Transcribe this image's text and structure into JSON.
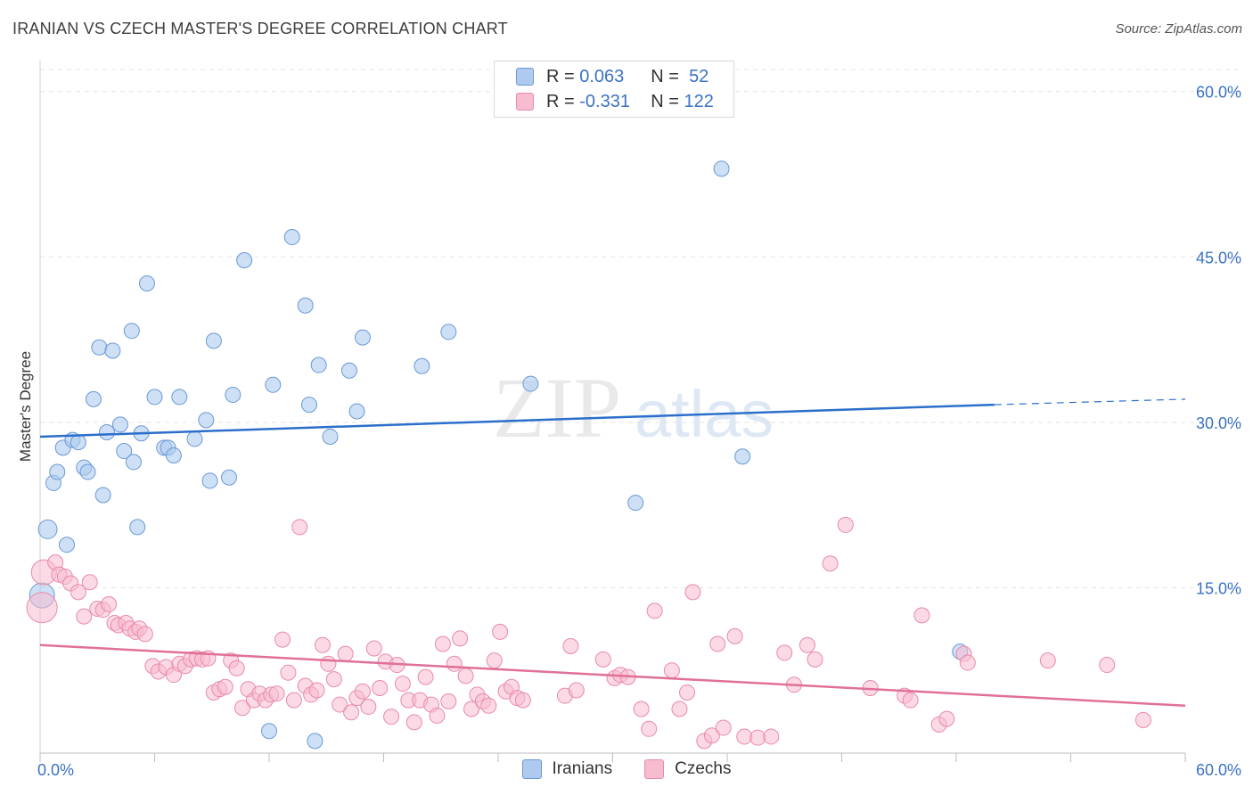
{
  "header": {
    "title": "IRANIAN VS CZECH MASTER'S DEGREE CORRELATION CHART",
    "source": "Source: ZipAtlas.com"
  },
  "watermark": {
    "zip": "ZIP",
    "atlas": "atlas"
  },
  "legend": {
    "iranians": {
      "r_label": "R =",
      "r_value": "0.063",
      "n_label": "N =",
      "n_value": "52"
    },
    "czechs": {
      "r_label": "R =",
      "r_value": "-0.331",
      "n_label": "N =",
      "n_value": "122"
    }
  },
  "colors": {
    "iranians_fill": "#aecbef",
    "iranians_stroke": "#6b98d6",
    "iranians_line": "#2b6fcb",
    "czechs_fill": "#f7bccf",
    "czechs_stroke": "#e98aa8",
    "czechs_line": "#e0709a",
    "grid": "#e4e4e4",
    "axis_label": "#3a72c4"
  },
  "chart_data": {
    "type": "scatter",
    "title": "IRANIAN VS CZECH MASTER'S DEGREE CORRELATION CHART",
    "xlabel": "",
    "ylabel": "Master's Degree",
    "xlim": [
      0,
      60
    ],
    "ylim": [
      0,
      62
    ],
    "x_tick_labels": [
      "0.0%",
      "60.0%"
    ],
    "y_ticks": [
      15,
      30,
      45,
      60
    ],
    "y_tick_labels": [
      "15.0%",
      "30.0%",
      "45.0%",
      "60.0%"
    ],
    "grid": true,
    "legend_position": "top-center",
    "series": [
      {
        "name": "Iranians",
        "r": 0.063,
        "n": 52,
        "trend": {
          "x": [
            0,
            50
          ],
          "y": [
            28.7,
            31.6
          ],
          "dashed_to": [
            60,
            32.1
          ]
        },
        "points": [
          [
            0.1,
            14.3
          ],
          [
            0.4,
            20.3
          ],
          [
            0.7,
            24.5
          ],
          [
            0.9,
            25.5
          ],
          [
            1.2,
            27.7
          ],
          [
            1.4,
            18.9
          ],
          [
            1.7,
            28.4
          ],
          [
            2.0,
            28.2
          ],
          [
            2.3,
            25.9
          ],
          [
            2.5,
            25.5
          ],
          [
            2.8,
            32.1
          ],
          [
            3.1,
            36.8
          ],
          [
            3.3,
            23.4
          ],
          [
            3.5,
            29.1
          ],
          [
            3.8,
            36.5
          ],
          [
            4.2,
            29.8
          ],
          [
            4.4,
            27.4
          ],
          [
            4.8,
            38.3
          ],
          [
            4.9,
            26.4
          ],
          [
            5.1,
            20.5
          ],
          [
            5.3,
            29.0
          ],
          [
            5.6,
            42.6
          ],
          [
            6.0,
            32.3
          ],
          [
            6.5,
            27.7
          ],
          [
            6.7,
            27.7
          ],
          [
            7.0,
            27.0
          ],
          [
            7.3,
            32.3
          ],
          [
            8.1,
            28.5
          ],
          [
            8.7,
            30.2
          ],
          [
            8.9,
            24.7
          ],
          [
            9.1,
            37.4
          ],
          [
            9.9,
            25.0
          ],
          [
            10.1,
            32.5
          ],
          [
            12.0,
            2.0
          ],
          [
            10.7,
            44.7
          ],
          [
            12.2,
            33.4
          ],
          [
            13.2,
            46.8
          ],
          [
            13.9,
            40.6
          ],
          [
            14.1,
            31.6
          ],
          [
            14.4,
            1.1
          ],
          [
            14.6,
            35.2
          ],
          [
            15.2,
            28.7
          ],
          [
            16.2,
            34.7
          ],
          [
            16.6,
            31.0
          ],
          [
            16.9,
            37.7
          ],
          [
            20.0,
            35.1
          ],
          [
            21.4,
            38.2
          ],
          [
            25.7,
            33.5
          ],
          [
            31.2,
            22.7
          ],
          [
            35.7,
            53.0
          ],
          [
            36.8,
            26.9
          ],
          [
            48.2,
            9.2
          ]
        ]
      },
      {
        "name": "Czechs",
        "r": -0.331,
        "n": 122,
        "trend": {
          "x": [
            0,
            60
          ],
          "y": [
            9.8,
            4.3
          ]
        },
        "points": [
          [
            0.1,
            13.2
          ],
          [
            0.2,
            16.4
          ],
          [
            0.8,
            17.3
          ],
          [
            1.0,
            16.2
          ],
          [
            1.3,
            16.0
          ],
          [
            1.6,
            15.4
          ],
          [
            2.0,
            14.6
          ],
          [
            2.3,
            12.4
          ],
          [
            2.6,
            15.5
          ],
          [
            3.0,
            13.1
          ],
          [
            3.3,
            13.0
          ],
          [
            3.6,
            13.5
          ],
          [
            3.9,
            11.8
          ],
          [
            4.1,
            11.6
          ],
          [
            4.5,
            11.8
          ],
          [
            4.7,
            11.3
          ],
          [
            5.0,
            11.0
          ],
          [
            5.2,
            11.3
          ],
          [
            5.5,
            10.8
          ],
          [
            5.9,
            7.9
          ],
          [
            6.2,
            7.4
          ],
          [
            6.6,
            7.8
          ],
          [
            7.0,
            7.1
          ],
          [
            7.3,
            8.1
          ],
          [
            7.6,
            7.9
          ],
          [
            7.9,
            8.5
          ],
          [
            8.2,
            8.6
          ],
          [
            8.5,
            8.5
          ],
          [
            8.8,
            8.6
          ],
          [
            9.1,
            5.5
          ],
          [
            9.4,
            5.8
          ],
          [
            9.7,
            6.0
          ],
          [
            10.0,
            8.4
          ],
          [
            10.3,
            7.7
          ],
          [
            10.6,
            4.1
          ],
          [
            10.9,
            5.8
          ],
          [
            11.2,
            4.8
          ],
          [
            11.5,
            5.4
          ],
          [
            11.8,
            4.8
          ],
          [
            12.1,
            5.3
          ],
          [
            12.4,
            5.4
          ],
          [
            12.7,
            10.3
          ],
          [
            13.0,
            7.3
          ],
          [
            13.3,
            4.8
          ],
          [
            13.6,
            20.5
          ],
          [
            13.9,
            6.1
          ],
          [
            14.2,
            5.3
          ],
          [
            14.5,
            5.7
          ],
          [
            14.8,
            9.8
          ],
          [
            15.1,
            8.1
          ],
          [
            15.4,
            6.7
          ],
          [
            15.7,
            4.4
          ],
          [
            16.0,
            9.0
          ],
          [
            16.3,
            3.7
          ],
          [
            16.6,
            5.0
          ],
          [
            16.9,
            5.6
          ],
          [
            17.2,
            4.2
          ],
          [
            17.5,
            9.5
          ],
          [
            17.8,
            5.9
          ],
          [
            18.1,
            8.3
          ],
          [
            18.4,
            3.3
          ],
          [
            18.7,
            8.0
          ],
          [
            19.0,
            6.3
          ],
          [
            19.3,
            4.8
          ],
          [
            19.6,
            2.8
          ],
          [
            19.9,
            4.8
          ],
          [
            20.2,
            6.9
          ],
          [
            20.5,
            4.4
          ],
          [
            20.8,
            3.4
          ],
          [
            21.1,
            9.9
          ],
          [
            21.4,
            4.7
          ],
          [
            21.7,
            8.1
          ],
          [
            22.0,
            10.4
          ],
          [
            22.3,
            7.0
          ],
          [
            22.6,
            4.0
          ],
          [
            22.9,
            5.3
          ],
          [
            23.2,
            4.7
          ],
          [
            23.5,
            4.3
          ],
          [
            23.8,
            8.4
          ],
          [
            24.1,
            11.0
          ],
          [
            24.4,
            5.6
          ],
          [
            24.7,
            6.0
          ],
          [
            25.0,
            5.0
          ],
          [
            25.3,
            4.8
          ],
          [
            27.5,
            5.2
          ],
          [
            27.8,
            9.7
          ],
          [
            28.1,
            5.7
          ],
          [
            29.5,
            8.5
          ],
          [
            30.1,
            6.8
          ],
          [
            30.4,
            7.1
          ],
          [
            30.8,
            6.9
          ],
          [
            31.5,
            4.0
          ],
          [
            31.9,
            2.2
          ],
          [
            32.2,
            12.9
          ],
          [
            33.1,
            7.5
          ],
          [
            33.5,
            4.0
          ],
          [
            33.9,
            5.5
          ],
          [
            34.2,
            14.6
          ],
          [
            34.8,
            1.1
          ],
          [
            35.2,
            1.6
          ],
          [
            35.5,
            9.9
          ],
          [
            35.8,
            2.3
          ],
          [
            36.4,
            10.6
          ],
          [
            36.9,
            1.5
          ],
          [
            37.6,
            1.4
          ],
          [
            38.3,
            1.5
          ],
          [
            39.0,
            9.1
          ],
          [
            39.5,
            6.2
          ],
          [
            40.2,
            9.8
          ],
          [
            40.6,
            8.5
          ],
          [
            41.4,
            17.2
          ],
          [
            42.2,
            20.7
          ],
          [
            43.5,
            5.9
          ],
          [
            45.3,
            5.2
          ],
          [
            45.6,
            4.8
          ],
          [
            46.2,
            12.5
          ],
          [
            47.1,
            2.6
          ],
          [
            47.5,
            3.1
          ],
          [
            48.4,
            9.0
          ],
          [
            48.6,
            8.2
          ],
          [
            52.8,
            8.4
          ],
          [
            55.9,
            8.0
          ],
          [
            57.8,
            3.0
          ]
        ]
      }
    ]
  },
  "bottom_legend": {
    "iranians": "Iranians",
    "czechs": "Czechs"
  }
}
